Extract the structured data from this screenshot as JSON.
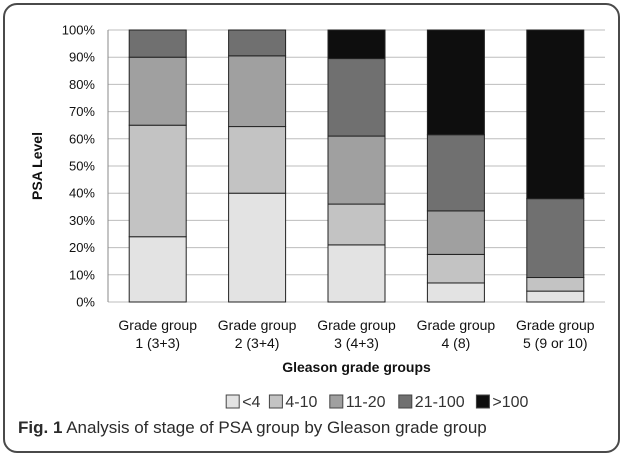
{
  "chart_data": {
    "type": "bar",
    "stacked": true,
    "percent": true,
    "categories": [
      [
        "Grade group",
        "1 (3+3)"
      ],
      [
        "Grade group",
        "2 (3+4)"
      ],
      [
        "Grade group",
        "3 (4+3)"
      ],
      [
        "Grade group",
        "4 (8)"
      ],
      [
        "Grade group",
        "5 (9 or 10)"
      ]
    ],
    "series": [
      {
        "name": "<4",
        "color": "#e3e3e3",
        "values": [
          24,
          40,
          21,
          7,
          4
        ]
      },
      {
        "name": "4-10",
        "color": "#c3c3c3",
        "values": [
          41,
          24.5,
          15,
          10.5,
          5
        ]
      },
      {
        "name": "11-20",
        "color": "#a0a0a0",
        "values": [
          25,
          26,
          25,
          16,
          0
        ]
      },
      {
        "name": "21-100",
        "color": "#707070",
        "values": [
          10,
          9.5,
          28.5,
          28,
          29
        ]
      },
      {
        "name": ">100",
        "color": "#0e0e0e",
        "values": [
          0,
          0,
          10.5,
          38.5,
          62
        ]
      }
    ],
    "yticks": [
      "0%",
      "10%",
      "20%",
      "30%",
      "40%",
      "50%",
      "60%",
      "70%",
      "80%",
      "90%",
      "100%"
    ],
    "ylim": [
      0,
      100
    ],
    "xlabel": "Gleason grade  groups",
    "ylabel": "PSA Level",
    "legend_position": "bottom",
    "grid": true
  },
  "caption": {
    "label": "Fig. 1",
    "text": "Analysis of stage of PSA group by Gleason grade group"
  }
}
